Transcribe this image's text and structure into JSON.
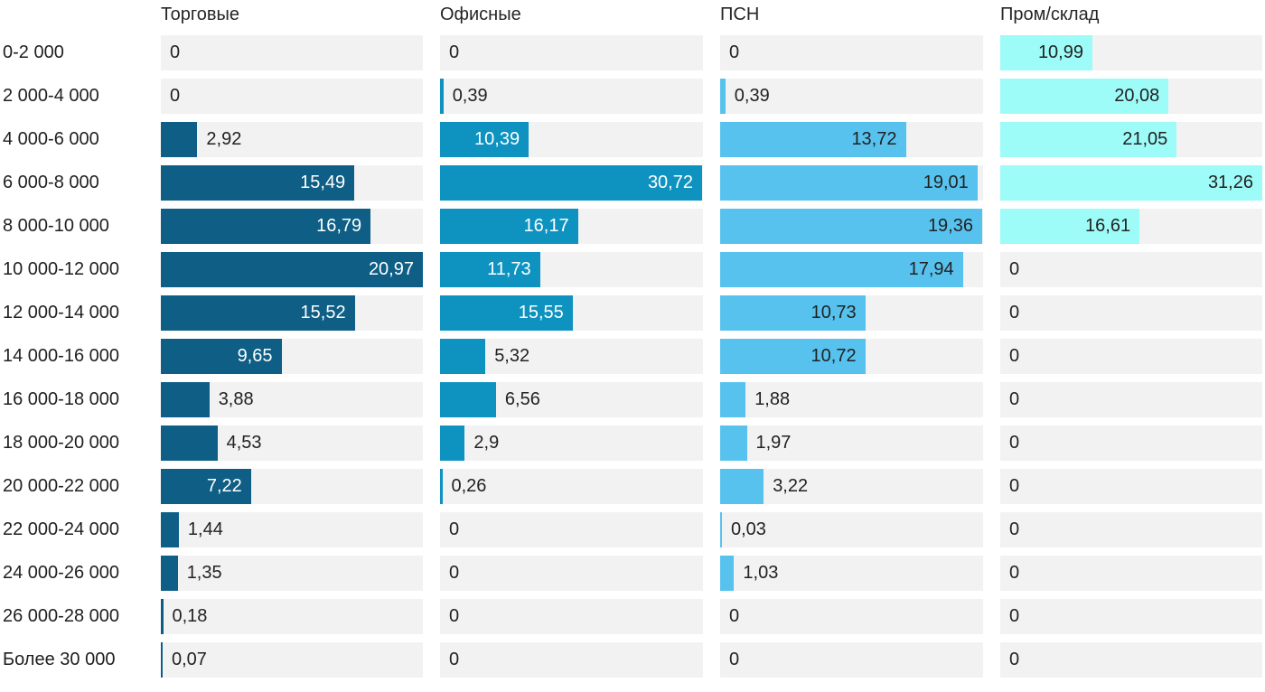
{
  "chart_data": {
    "type": "bar",
    "orientation": "horizontal",
    "layout": "small-multiples: 4 independently scaled bar columns sharing category rows",
    "title": "",
    "categories": [
      "0-2 000",
      "2 000-4 000",
      "4 000-6 000",
      "6 000-8 000",
      "8 000-10 000",
      "10 000-12 000",
      "12 000-14 000",
      "14 000-16 000",
      "16 000-18 000",
      "18 000-20 000",
      "20 000-22 000",
      "22 000-24 000",
      "24 000-26 000",
      "26 000-28 000",
      "Более 30 000"
    ],
    "series": [
      {
        "name": "Торговые",
        "color": "#0e5e86",
        "label_color_inside": "#ffffff",
        "axis_max": 20.97,
        "values": [
          0,
          0,
          2.92,
          15.49,
          16.79,
          20.97,
          15.52,
          9.65,
          3.88,
          4.53,
          7.22,
          1.44,
          1.35,
          0.18,
          0.07
        ],
        "labels": [
          "0",
          "0",
          "2,92",
          "15,49",
          "16,79",
          "20,97",
          "15,52",
          "9,65",
          "3,88",
          "4,53",
          "7,22",
          "1,44",
          "1,35",
          "0,18",
          "0,07"
        ]
      },
      {
        "name": "Офисные",
        "color": "#0e93c1",
        "label_color_inside": "#ffffff",
        "axis_max": 30.72,
        "values": [
          0,
          0.39,
          10.39,
          30.72,
          16.17,
          11.73,
          15.55,
          5.32,
          6.56,
          2.9,
          0.26,
          0,
          0,
          0,
          0
        ],
        "labels": [
          "0",
          "0,39",
          "10,39",
          "30,72",
          "16,17",
          "11,73",
          "15,55",
          "5,32",
          "6,56",
          "2,9",
          "0,26",
          "0",
          "0",
          "0",
          "0"
        ]
      },
      {
        "name": "ПСН",
        "color": "#58c2ee",
        "label_color_inside": "#222222",
        "axis_max": 19.36,
        "values": [
          0,
          0.39,
          13.72,
          19.01,
          19.36,
          17.94,
          10.73,
          10.72,
          1.88,
          1.97,
          3.22,
          0.03,
          1.03,
          0,
          0
        ],
        "labels": [
          "0",
          "0,39",
          "13,72",
          "19,01",
          "19,36",
          "17,94",
          "10,73",
          "10,72",
          "1,88",
          "1,97",
          "3,22",
          "0,03",
          "1,03",
          "0",
          "0"
        ]
      },
      {
        "name": "Пром/склад",
        "color": "#9dfbf8",
        "label_color_inside": "#222222",
        "axis_max": 31.26,
        "values": [
          10.99,
          20.08,
          21.05,
          31.26,
          16.61,
          0,
          0,
          0,
          0,
          0,
          0,
          0,
          0,
          0,
          0
        ],
        "labels": [
          "10,99",
          "20,08",
          "21,05",
          "31,26",
          "16,61",
          "0",
          "0",
          "0",
          "0",
          "0",
          "0",
          "0",
          "0",
          "0",
          "0"
        ]
      }
    ],
    "track_color": "#f2f2f2",
    "text_color": "#222222",
    "grid": false,
    "legend_position": "column headers",
    "value_label_rule": "inside bar right-aligned when bar is wide enough, otherwise dark label to the right of bar"
  }
}
